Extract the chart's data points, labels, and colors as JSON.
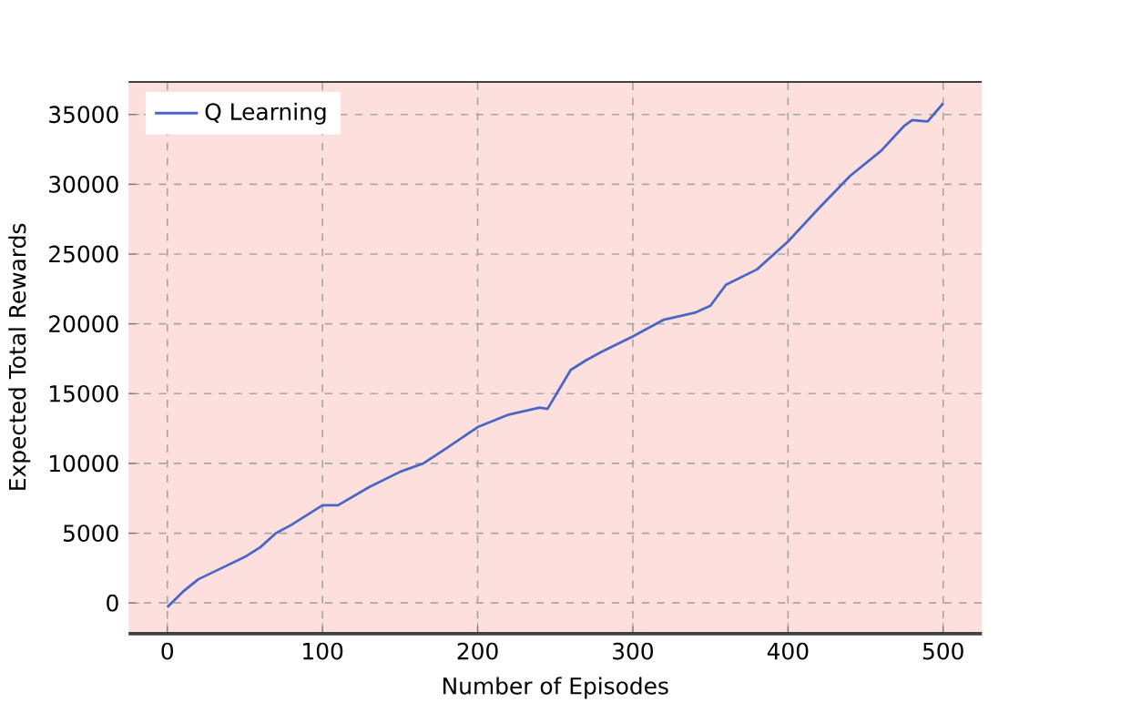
{
  "chart_data": {
    "type": "line",
    "xlabel": "Number of Episodes",
    "ylabel": "Expected Total Rewards",
    "series": [
      {
        "name": "Q Learning",
        "color": "#4a66c4",
        "x": [
          0,
          10,
          20,
          35,
          50,
          60,
          70,
          80,
          100,
          110,
          130,
          150,
          165,
          180,
          200,
          220,
          240,
          245,
          260,
          270,
          280,
          300,
          320,
          340,
          350,
          360,
          380,
          400,
          420,
          440,
          460,
          475,
          480,
          490,
          500
        ],
        "values": [
          -300,
          800,
          1700,
          2500,
          3300,
          4000,
          5000,
          5600,
          7000,
          7000,
          8300,
          9400,
          10000,
          11100,
          12600,
          13500,
          14000,
          13900,
          16700,
          17400,
          18000,
          19100,
          20300,
          20800,
          21300,
          22800,
          23900,
          25900,
          28300,
          30600,
          32400,
          34200,
          34600,
          34500,
          35800
        ]
      }
    ],
    "xlim": [
      -25,
      525
    ],
    "ylim": [
      -2200,
      37400
    ],
    "xticks": [
      0,
      100,
      200,
      300,
      400,
      500
    ],
    "yticks": [
      0,
      5000,
      10000,
      15000,
      20000,
      25000,
      30000,
      35000
    ],
    "grid": true,
    "legend": "top left",
    "marker": "none",
    "line_style": "solid"
  }
}
